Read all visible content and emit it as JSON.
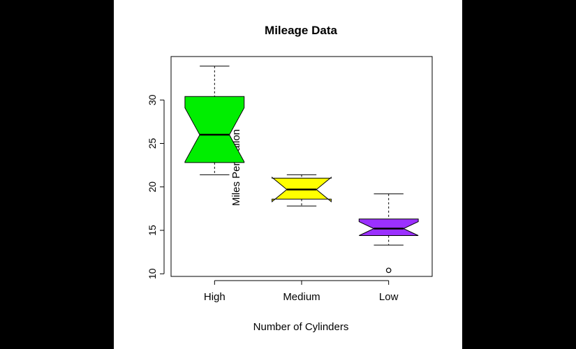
{
  "chart_data": {
    "type": "boxplot",
    "title": "Mileage Data",
    "xlabel": "Number of Cylinders",
    "ylabel": "Miles Per Gallon",
    "ylim": [
      9.7,
      35
    ],
    "yticks": [
      10,
      15,
      20,
      25,
      30
    ],
    "notched": true,
    "categories": [
      "High",
      "Medium",
      "Low"
    ],
    "boxes": [
      {
        "category": "High",
        "min": 21.4,
        "q1": 22.8,
        "median": 26.0,
        "q3": 30.4,
        "max": 33.9,
        "notch_low": 22.9,
        "notch_high": 29.1,
        "outliers": [],
        "color": "#00ee00"
      },
      {
        "category": "Medium",
        "min": 17.8,
        "q1": 18.6,
        "median": 19.7,
        "q3": 21.0,
        "max": 21.4,
        "notch_low": 18.3,
        "notch_high": 21.1,
        "outliers": [],
        "color": "#ffff00"
      },
      {
        "category": "Low",
        "min": 13.3,
        "q1": 14.4,
        "median": 15.2,
        "q3": 16.3,
        "max": 19.2,
        "notch_low": 14.4,
        "notch_high": 16.0,
        "outliers": [
          10.4
        ],
        "color": "#9b30ff"
      }
    ]
  }
}
